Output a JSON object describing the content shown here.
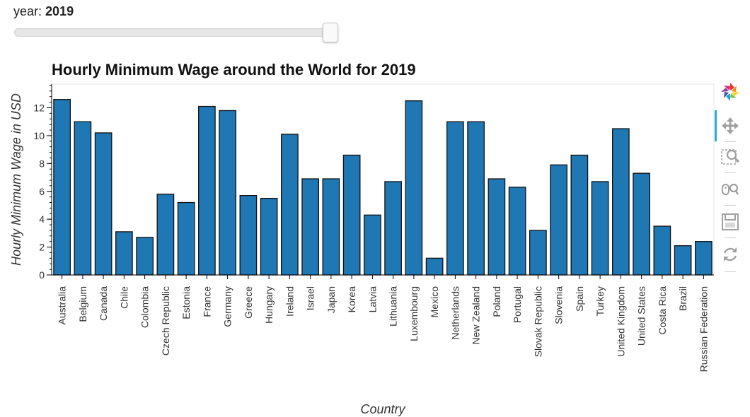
{
  "slider": {
    "label": "year: ",
    "value": "2019",
    "min": 2001,
    "max": 2019,
    "current": 2019
  },
  "toolbar": {
    "tools": [
      {
        "name": "bokeh-logo-icon"
      },
      {
        "name": "pan-icon"
      },
      {
        "name": "box-zoom-icon"
      },
      {
        "name": "wheel-zoom-icon"
      },
      {
        "name": "save-icon"
      },
      {
        "name": "reset-icon"
      }
    ],
    "active_color": "#26aae1"
  },
  "chart_data": {
    "type": "bar",
    "title": "Hourly Minimum Wage around the World for 2019",
    "xlabel": "Country",
    "ylabel": "Hourly Minimum Wage in USD",
    "ylim": [
      0,
      13.7
    ],
    "yticks": [
      0,
      2,
      4,
      6,
      8,
      10,
      12
    ],
    "bar_color": "#1f77b4",
    "categories": [
      "Australia",
      "Belgium",
      "Canada",
      "Chile",
      "Colombia",
      "Czech Republic",
      "Estonia",
      "France",
      "Germany",
      "Greece",
      "Hungary",
      "Ireland",
      "Israel",
      "Japan",
      "Korea",
      "Latvia",
      "Lithuania",
      "Luxembourg",
      "Mexico",
      "Netherlands",
      "New Zealand",
      "Poland",
      "Portugal",
      "Slovak Republic",
      "Slovenia",
      "Spain",
      "Turkey",
      "United Kingdom",
      "United States",
      "Costa Rica",
      "Brazil",
      "Russian Federation"
    ],
    "values": [
      12.6,
      11.0,
      10.2,
      3.1,
      2.7,
      5.8,
      5.2,
      12.1,
      11.8,
      5.7,
      5.5,
      10.1,
      6.9,
      6.9,
      8.6,
      4.3,
      6.7,
      12.5,
      1.2,
      11.0,
      11.0,
      6.9,
      6.3,
      3.2,
      7.9,
      8.6,
      6.7,
      10.5,
      7.3,
      3.5,
      2.1,
      2.4
    ]
  }
}
